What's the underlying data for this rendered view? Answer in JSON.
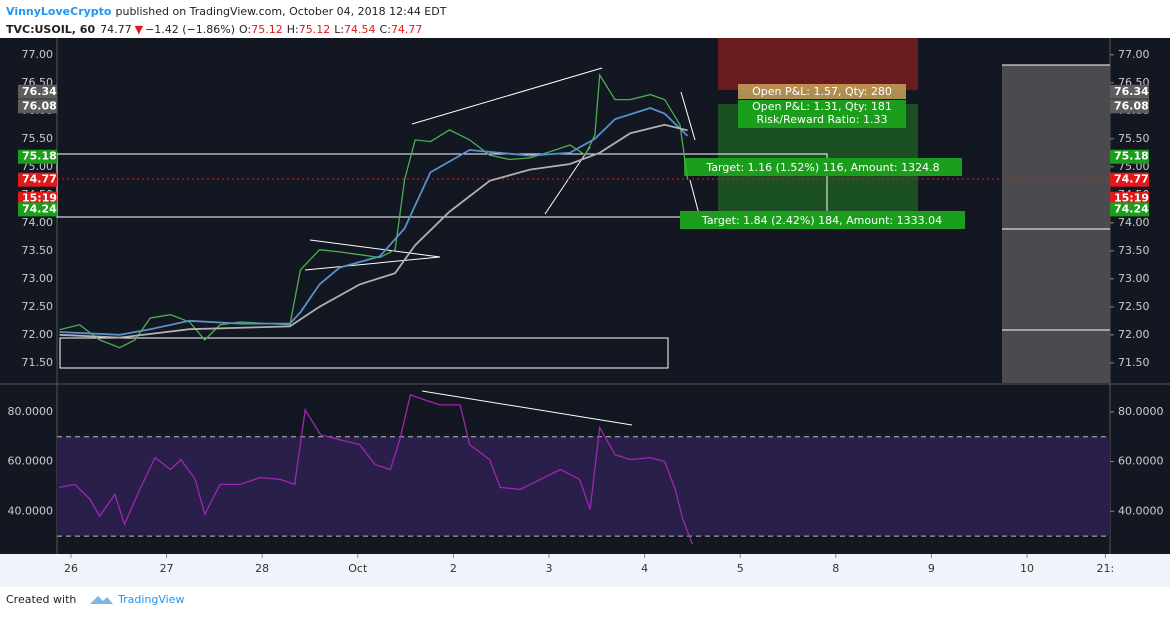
{
  "header": {
    "author": "VinnyLoveCrypto",
    "published": "published on TradingView.com, October 04, 2018 12:44 EDT",
    "symbol": "TVC:USOIL, 60",
    "last": "74.77",
    "change": "−1.42 (−1.86%)",
    "o_label": "O:",
    "o": "75.12",
    "h_label": "H:",
    "h": "75.12",
    "l_label": "L:",
    "l": "74.54",
    "c_label": "C:",
    "c": "74.77"
  },
  "footer": {
    "created": "Created with",
    "brand": "TradingView"
  },
  "chart_data": [
    {
      "type": "line",
      "xlim": [
        -0.146,
        10.868
      ],
      "ylim": [
        71.14,
        77.3
      ],
      "xticks": [
        {
          "value": 0,
          "label": "26"
        },
        {
          "value": 1,
          "label": "27"
        },
        {
          "value": 2,
          "label": "28"
        },
        {
          "value": 3,
          "label": "Oct"
        },
        {
          "value": 4,
          "label": "2"
        },
        {
          "value": 5,
          "label": "3"
        },
        {
          "value": 6,
          "label": "4"
        },
        {
          "value": 7,
          "label": "5"
        },
        {
          "value": 8,
          "label": "8"
        },
        {
          "value": 9,
          "label": "9"
        },
        {
          "value": 10,
          "label": "10"
        },
        {
          "value": 10.82,
          "label": "21:"
        }
      ],
      "yticks": [
        {
          "value": 77,
          "label": "77.00"
        },
        {
          "value": 76.5,
          "label": "76.50"
        },
        {
          "value": 76,
          "label": "76.00"
        },
        {
          "value": 75.5,
          "label": "75.50"
        },
        {
          "value": 75,
          "label": "75.00"
        },
        {
          "value": 74.5,
          "label": "74.50"
        },
        {
          "value": 74,
          "label": "74.00"
        },
        {
          "value": 73.5,
          "label": "73.50"
        },
        {
          "value": 73,
          "label": "73.00"
        },
        {
          "value": 72.5,
          "label": "72.50"
        },
        {
          "value": 72,
          "label": "72.00"
        },
        {
          "value": 71.5,
          "label": "71.50"
        }
      ],
      "series": [
        {
          "color": "#4caf50",
          "x": [
            -0.12,
            0.09,
            0.3,
            0.51,
            0.67,
            0.83,
            1.04,
            1.24,
            1.4,
            1.56,
            1.77,
            1.98,
            2.29,
            2.4,
            2.6,
            2.81,
            3.02,
            3.23,
            3.39,
            3.49,
            3.6,
            3.76,
            3.96,
            4.17,
            4.38,
            4.59,
            4.8,
            5.01,
            5.22,
            5.38,
            5.48,
            5.53,
            5.69,
            5.85,
            6.06,
            6.21,
            6.37,
            6.45
          ],
          "values": [
            72.09,
            72.18,
            71.91,
            71.77,
            71.91,
            72.3,
            72.36,
            72.23,
            71.91,
            72.18,
            72.23,
            72.21,
            72.18,
            73.16,
            73.52,
            73.48,
            73.43,
            73.38,
            73.52,
            74.77,
            75.48,
            75.45,
            75.66,
            75.48,
            75.21,
            75.13,
            75.16,
            75.27,
            75.39,
            75.21,
            75.57,
            76.64,
            76.2,
            76.2,
            76.29,
            76.2,
            75.75,
            74.77
          ]
        },
        {
          "color": "#5b8fc9",
          "x": [
            -0.12,
            0.51,
            0.83,
            1.24,
            1.77,
            2.29,
            2.4,
            2.6,
            2.81,
            3.23,
            3.49,
            3.76,
            4.17,
            4.8,
            5.22,
            5.48,
            5.69,
            6.06,
            6.21,
            6.45
          ],
          "values": [
            72.05,
            72,
            72.1,
            72.25,
            72.2,
            72.2,
            72.4,
            72.9,
            73.2,
            73.4,
            73.9,
            74.9,
            75.3,
            75.2,
            75.25,
            75.5,
            75.85,
            76.05,
            75.95,
            75.55
          ]
        },
        {
          "color": "#b0b0b0",
          "x": [
            -0.12,
            0.51,
            1.24,
            2.29,
            2.6,
            3.02,
            3.39,
            3.6,
            3.96,
            4.38,
            4.8,
            5.22,
            5.53,
            5.85,
            6.21,
            6.45
          ],
          "values": [
            72,
            71.95,
            72.1,
            72.15,
            72.5,
            72.9,
            73.1,
            73.6,
            74.2,
            74.75,
            74.95,
            75.05,
            75.25,
            75.6,
            75.75,
            75.65
          ]
        }
      ],
      "price_labels": [
        {
          "value": 76.34,
          "label": "76.34",
          "color": "#5d5d5d"
        },
        {
          "value": 76.08,
          "label": "76.08",
          "color": "#5d5d5d"
        },
        {
          "value": 75.18,
          "label": "75.18",
          "color": "#1b9e1b"
        },
        {
          "value": 74.77,
          "label": "74.77",
          "color": "#e0191b"
        },
        {
          "value": 74.24,
          "label": "74.24",
          "color": "#1b9e1b"
        }
      ],
      "countdown": "15:19",
      "annotations": [
        "Open P&L: 1.57, Qty: 280",
        "Open P&L: 1.31, Qty: 181",
        "Risk/Reward Ratio: 1.33",
        "Target: 1.16 (1.52%) 116, Amount: 1324.8",
        "Target: 1.84 (2.42%) 184, Amount: 1333.04"
      ]
    },
    {
      "type": "line",
      "xlim": [
        -0.146,
        10.868
      ],
      "ylim": [
        22.8,
        90.8
      ],
      "yticks": [
        {
          "value": 80,
          "label": "80.0000"
        },
        {
          "value": 60,
          "label": "60.0000"
        },
        {
          "value": 40,
          "label": "40.0000"
        }
      ],
      "bands": [
        70,
        30
      ],
      "series": [
        {
          "color": "#9c27b0",
          "x": [
            -0.12,
            0.04,
            0.2,
            0.3,
            0.46,
            0.56,
            0.72,
            0.88,
            1.04,
            1.15,
            1.3,
            1.4,
            1.56,
            1.77,
            1.98,
            2.19,
            2.34,
            2.45,
            2.61,
            2.81,
            3.02,
            3.18,
            3.34,
            3.44,
            3.55,
            3.7,
            3.86,
            4.07,
            4.17,
            4.38,
            4.49,
            4.7,
            4.91,
            5.12,
            5.32,
            5.43,
            5.53,
            5.69,
            5.85,
            6.06,
            6.21,
            6.32,
            6.4,
            6.5
          ],
          "values": [
            49.6,
            50.8,
            44.8,
            38,
            46.8,
            34.8,
            48.8,
            61.6,
            56.8,
            60.8,
            52.8,
            38.8,
            50.8,
            50.8,
            53.6,
            52.8,
            50.8,
            80.8,
            70.8,
            68.8,
            66.8,
            58.8,
            56.8,
            68.8,
            86.8,
            84.8,
            82.8,
            82.8,
            66.8,
            60.8,
            49.6,
            48.8,
            52.8,
            56.8,
            52.8,
            40.8,
            73.6,
            62.8,
            60.8,
            61.6,
            60,
            48.8,
            36.8,
            26.8
          ]
        }
      ]
    }
  ]
}
